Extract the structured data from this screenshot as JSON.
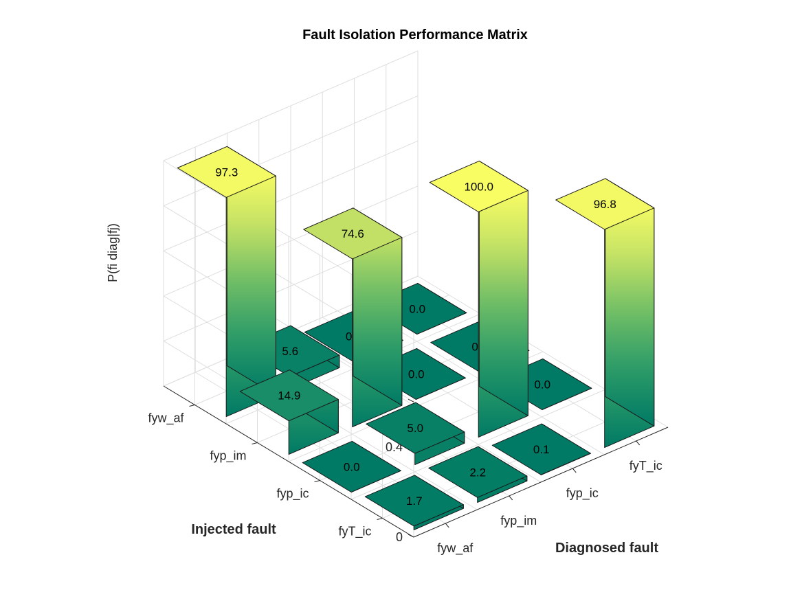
{
  "chart_data": {
    "type": "bar3d",
    "title": "Fault Isolation Performance Matrix",
    "xlabel": "Diagnosed fault",
    "ylabel": "Injected fault",
    "zlabel": "P(fi diag|fj)",
    "zlim": [
      0,
      1
    ],
    "zticks": [
      "0",
      "0.2",
      "0.4",
      "0.6",
      "0.8",
      "1"
    ],
    "diagnosed_categories": [
      "fyw_af",
      "fyp_im",
      "fyp_ic",
      "fyT_ic"
    ],
    "injected_categories": [
      "fyw_af",
      "fyp_im",
      "fyp_ic",
      "fyT_ic"
    ],
    "matrix_percent": [
      [
        97.3,
        5.6,
        0.0,
        0.0
      ],
      [
        14.9,
        74.6,
        0.0,
        0.0
      ],
      [
        0.0,
        5.0,
        100.0,
        0.0
      ],
      [
        1.7,
        2.2,
        0.1,
        96.8
      ]
    ],
    "matrix_labels": [
      [
        "97.3",
        "5.6",
        "0.0",
        "0.0"
      ],
      [
        "14.9",
        "74.6",
        "0.0",
        "0.0"
      ],
      [
        "0.0",
        "5.0",
        "100.0",
        "0.0"
      ],
      [
        "1.7",
        "2.2",
        "0.1",
        "96.8"
      ]
    ],
    "colormap": [
      "#007a65",
      "#2a9a68",
      "#6ebd66",
      "#c3e165",
      "#f9fd64"
    ],
    "grid": true
  }
}
